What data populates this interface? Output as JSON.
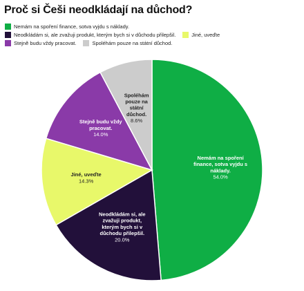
{
  "chart_data": {
    "type": "pie",
    "title": "Proč si Češi neodkládají na důchod?",
    "legend_position": "top",
    "slices": [
      {
        "label": "Nemám na spoření finance, sotva vyjdu s náklady.",
        "label_lines": [
          "Nemám na spoření",
          "finance, sotva vyjdu s",
          "náklady."
        ],
        "value": 54.0,
        "value_text": "54.0%",
        "color": "#0fae45",
        "text_color": "#ffffff"
      },
      {
        "label": "Neodkládám si, ale zvažuji produkt, kterým bych si v důchodu přilepšil.",
        "label_lines": [
          "Neodkládám si, ale",
          "zvažuji produkt,",
          "kterým bych si v",
          "důchodu přilepšil."
        ],
        "value": 20.0,
        "value_text": "20.0%",
        "color": "#22103a",
        "text_color": "#ffffff"
      },
      {
        "label": "Jiné, uveďte",
        "label_lines": [
          "Jiné, uveďte"
        ],
        "value": 14.3,
        "value_text": "14.3%",
        "color": "#e8f86a",
        "text_color": "#222222"
      },
      {
        "label": "Stejně budu vždy pracovat.",
        "label_lines": [
          "Stejně budu vždy",
          "pracovat."
        ],
        "value": 14.0,
        "value_text": "14.0%",
        "color": "#8a3aa8",
        "text_color": "#ffffff"
      },
      {
        "label": "Spoléhám pouze na státní důchod.",
        "label_lines": [
          "Spoléhám",
          "pouze na",
          "státní",
          "důchod."
        ],
        "value": 8.6,
        "value_text": "8.6%",
        "color": "#cccccc",
        "text_color": "#222222"
      }
    ]
  },
  "legend": {
    "rows": [
      [
        0
      ],
      [
        1,
        2
      ],
      [
        3,
        4
      ]
    ]
  }
}
